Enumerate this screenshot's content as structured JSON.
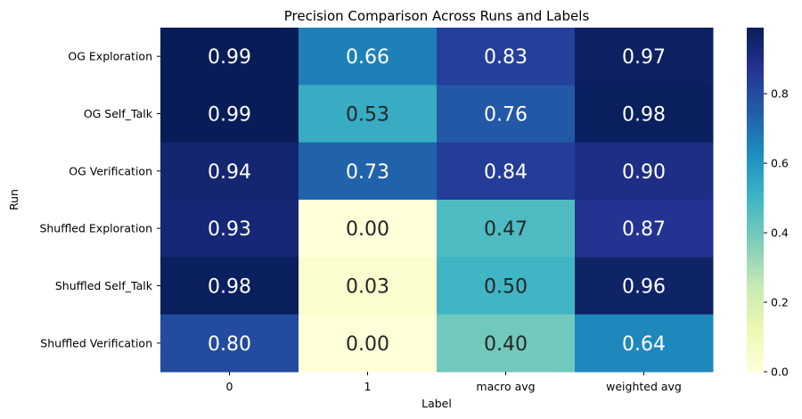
{
  "chart_data": {
    "type": "heatmap",
    "title": "Precision Comparison Across Runs and Labels",
    "xlabel": "Label",
    "ylabel": "Run",
    "x_categories": [
      "0",
      "1",
      "macro avg",
      "weighted avg"
    ],
    "y_categories": [
      "OG Exploration",
      "OG Self_Talk",
      "OG Verification",
      "Shuffled Exploration",
      "Shuffled Self_Talk",
      "Shuffled Verification"
    ],
    "values": [
      [
        0.99,
        0.66,
        0.83,
        0.97
      ],
      [
        0.99,
        0.53,
        0.76,
        0.98
      ],
      [
        0.94,
        0.73,
        0.84,
        0.9
      ],
      [
        0.93,
        0.0,
        0.47,
        0.87
      ],
      [
        0.98,
        0.03,
        0.5,
        0.96
      ],
      [
        0.8,
        0.0,
        0.4,
        0.64
      ]
    ],
    "annotations_format": "0.00",
    "colormap": "YlGnBu",
    "colorbar": {
      "range": [
        0.0,
        0.99
      ],
      "ticks": [
        0.0,
        0.2,
        0.4,
        0.6,
        0.8
      ],
      "tick_labels": [
        "0.0",
        "0.2",
        "0.4",
        "0.6",
        "0.8"
      ]
    },
    "grid": false,
    "legend": "colorbar-right"
  }
}
